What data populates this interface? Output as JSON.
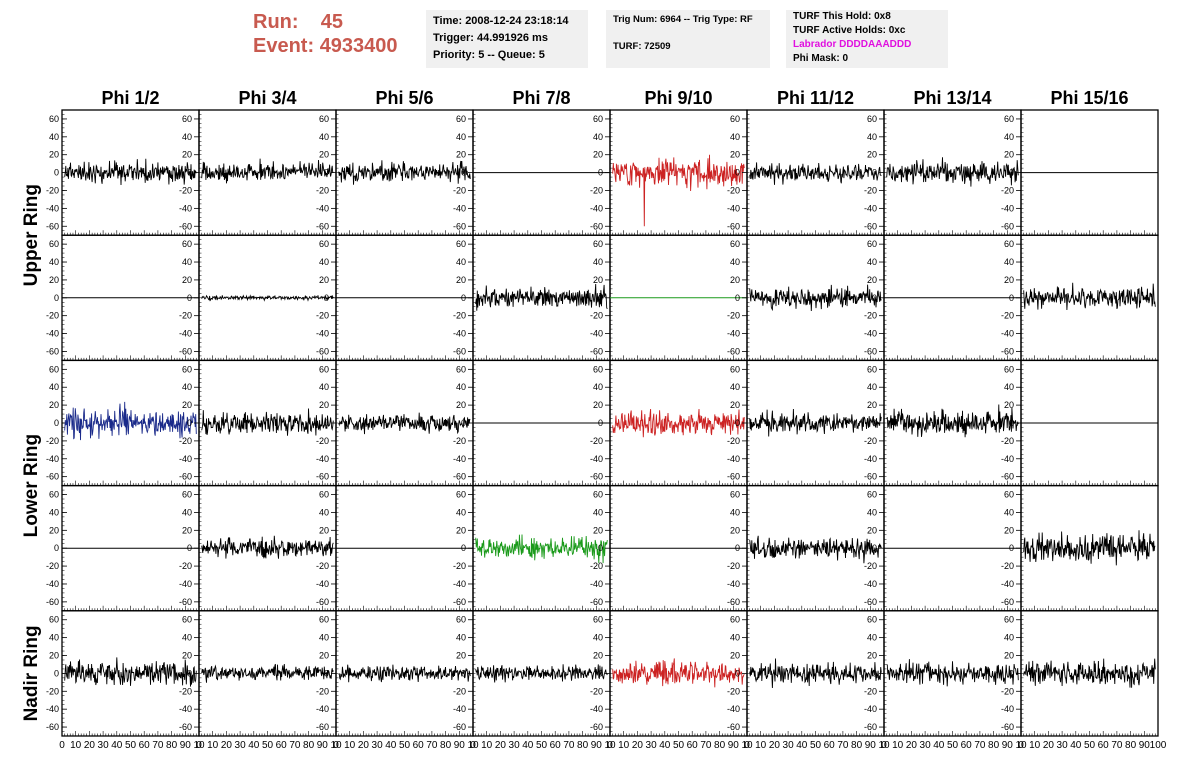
{
  "header": {
    "run_label": "Run:",
    "run_value": "45",
    "event_label": "Event:",
    "event_value": "4933400"
  },
  "time_box": {
    "time": "Time: 2008-12-24 23:18:14",
    "trigger": "Trigger: 44.991926 ms",
    "priority": "Priority: 5 -- Queue: 5"
  },
  "trig_box": {
    "trig": "Trig Num: 6964 -- Trig Type: RF",
    "turf": "TURF: 72509"
  },
  "turf_box": {
    "hold": "TURF This Hold: 0x8",
    "active": "TURF Active Holds: 0xc",
    "labrador": "Labrador DDDDAAADDD",
    "phimask": "Phi Mask: 0"
  },
  "colors": {
    "header": "#c85a4f",
    "default_trace": "#000000",
    "red": "#cc2222",
    "blue": "#1a2a8a",
    "green": "#1a9a1a",
    "magenta": "#e010e0",
    "panel_bg": "#f0f0f0"
  },
  "chart_data": {
    "type": "line",
    "columns": [
      "Phi 1/2",
      "Phi 3/4",
      "Phi 5/6",
      "Phi 7/8",
      "Phi 9/10",
      "Phi 11/12",
      "Phi 13/14",
      "Phi 15/16"
    ],
    "row_labels": [
      "Upper Ring",
      "Lower Ring",
      "Nadir Ring"
    ],
    "ylim": [
      -70,
      70
    ],
    "yticks": [
      60,
      40,
      20,
      0,
      -20,
      -40,
      -60
    ],
    "xlim": [
      0,
      100
    ],
    "xticks_major": [
      0,
      10,
      20,
      30,
      40,
      50,
      60,
      70,
      80,
      90,
      100
    ],
    "x_axis_labels": [
      [
        "0",
        "10",
        "20",
        "30",
        "40",
        "50",
        "60",
        "70",
        "80",
        "90",
        "10"
      ],
      [
        "0",
        "10",
        "20",
        "30",
        "40",
        "50",
        "60",
        "70",
        "80",
        "90",
        "10"
      ],
      [
        "0",
        "10",
        "20",
        "30",
        "40",
        "50",
        "60",
        "70",
        "80",
        "90",
        "10"
      ],
      [
        "0",
        "10",
        "20",
        "30",
        "40",
        "50",
        "60",
        "70",
        "80",
        "90",
        "10"
      ],
      [
        "0",
        "10",
        "20",
        "30",
        "40",
        "50",
        "60",
        "70",
        "80",
        "90",
        "10"
      ],
      [
        "0",
        "10",
        "20",
        "30",
        "40",
        "50",
        "60",
        "70",
        "80",
        "90",
        "10"
      ],
      [
        "0",
        "10",
        "20",
        "30",
        "40",
        "50",
        "60",
        "70",
        "80",
        "90",
        "10"
      ],
      [
        "0",
        "10",
        "20",
        "30",
        "40",
        "50",
        "60",
        "70",
        "80",
        "90",
        "100"
      ]
    ],
    "traces": [
      [
        {
          "c": "black",
          "a": 16,
          "s": 11
        },
        {
          "c": "black",
          "a": 15,
          "s": 12
        },
        {
          "c": "black",
          "a": 15,
          "s": 13
        },
        {
          "c": "flat"
        },
        {
          "c": "red",
          "a": 20,
          "s": 14,
          "spike": -60
        },
        {
          "c": "black",
          "a": 13,
          "s": 15
        },
        {
          "c": "black",
          "a": 17,
          "s": 16
        },
        {
          "c": "flat"
        }
      ],
      [
        {
          "c": "flat"
        },
        {
          "c": "black",
          "a": 3,
          "s": 21
        },
        {
          "c": "flat"
        },
        {
          "c": "black",
          "a": 15,
          "s": 22
        },
        {
          "c": "greenflat"
        },
        {
          "c": "black",
          "a": 16,
          "s": 23
        },
        {
          "c": "flat"
        },
        {
          "c": "black",
          "a": 16,
          "s": 24
        }
      ],
      [
        {
          "c": "blue",
          "a": 22,
          "s": 31
        },
        {
          "c": "black",
          "a": 16,
          "s": 32
        },
        {
          "c": "black",
          "a": 13,
          "s": 33
        },
        {
          "c": "flat"
        },
        {
          "c": "red",
          "a": 18,
          "s": 34
        },
        {
          "c": "black",
          "a": 15,
          "s": 35
        },
        {
          "c": "black",
          "a": 20,
          "s": 36
        },
        {
          "c": "flat"
        }
      ],
      [
        {
          "c": "flat"
        },
        {
          "c": "black",
          "a": 14,
          "s": 41
        },
        {
          "c": "flat"
        },
        {
          "c": "green",
          "a": 17,
          "s": 42
        },
        {
          "c": "flat"
        },
        {
          "c": "black",
          "a": 16,
          "s": 43
        },
        {
          "c": "flat"
        },
        {
          "c": "black",
          "a": 22,
          "s": 44
        }
      ],
      [
        {
          "c": "black",
          "a": 17,
          "s": 51
        },
        {
          "c": "black",
          "a": 12,
          "s": 52
        },
        {
          "c": "black",
          "a": 12,
          "s": 53
        },
        {
          "c": "black",
          "a": 12,
          "s": 54
        },
        {
          "c": "red",
          "a": 18,
          "s": 55
        },
        {
          "c": "black",
          "a": 16,
          "s": 56
        },
        {
          "c": "black",
          "a": 16,
          "s": 57
        },
        {
          "c": "black",
          "a": 18,
          "s": 58
        }
      ]
    ]
  }
}
